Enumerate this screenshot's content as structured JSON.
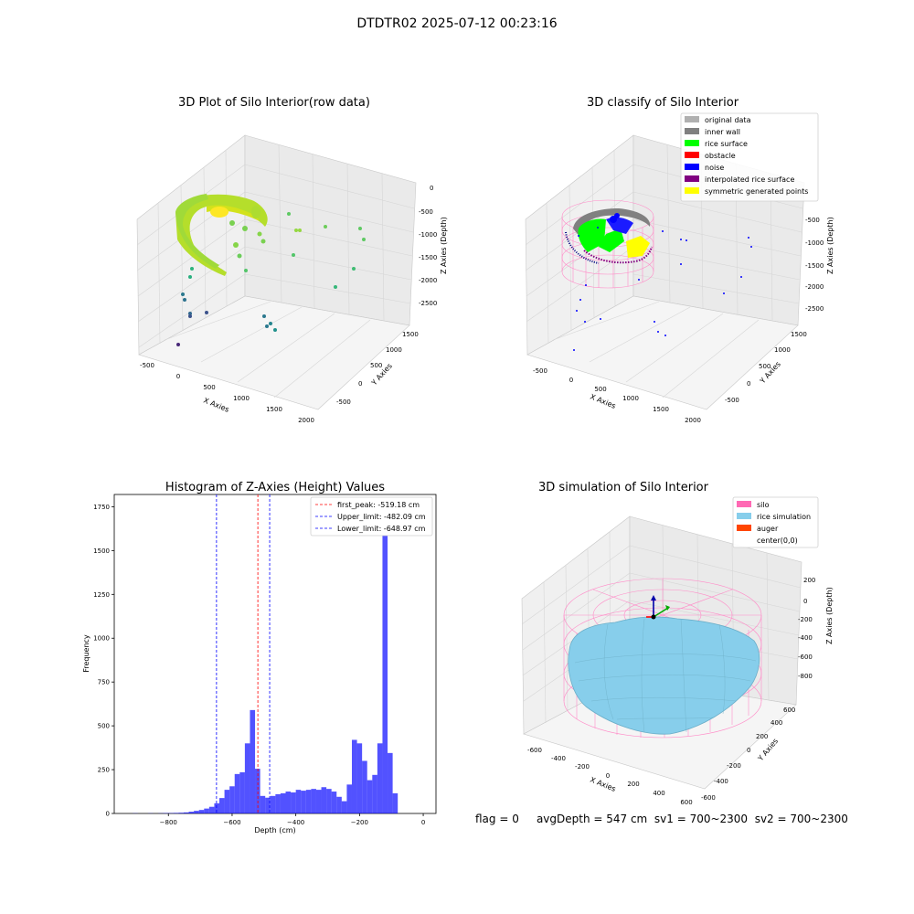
{
  "figure_title": "DTDTR02 2025-07-12 00:23:16",
  "status": {
    "flag": "flag = 0",
    "avg_depth": "avgDepth = 547 cm",
    "sv1": "sv1 = 700~2300",
    "sv2": "sv2 = 700~2300"
  },
  "chart_data": [
    {
      "type": "scatter",
      "title": "3D Plot of Silo Interior(row data)",
      "xlabel": "X Axies",
      "ylabel": "Y Axies",
      "zlabel": "Z Axies (Depth)",
      "x_ticks": [
        "-500",
        "0",
        "500",
        "1000",
        "1500",
        "2000"
      ],
      "y_ticks": [
        "-500",
        "0",
        "500",
        "1000",
        "1500"
      ],
      "z_ticks": [
        "0",
        "-500",
        "-1000",
        "-1500",
        "-2000",
        "-2500"
      ],
      "colormap": "viridis",
      "description_colors": {
        "surface": "#b5de2b",
        "high": "#fde725",
        "low": "#440154"
      }
    },
    {
      "type": "scatter",
      "title": "3D classify of Silo Interior",
      "xlabel": "X Axies",
      "ylabel": "Y Axies",
      "zlabel": "Z Axies (Depth)",
      "x_ticks": [
        "-500",
        "0",
        "500",
        "1000",
        "1500",
        "2000"
      ],
      "y_ticks": [
        "-500",
        "0",
        "500",
        "1000",
        "1500"
      ],
      "z_ticks": [
        "-500",
        "-1000",
        "-1500",
        "-2000",
        "-2500"
      ],
      "legend_position": "top-right",
      "legend": [
        {
          "label": "original data",
          "color": "#b0b0b0"
        },
        {
          "label": "inner wall",
          "color": "#808080"
        },
        {
          "label": "rice surface",
          "color": "#00ff00"
        },
        {
          "label": "obstacle",
          "color": "#ff0000"
        },
        {
          "label": "noise",
          "color": "#0000ff"
        },
        {
          "label": "interpolated rice surface",
          "color": "#800080"
        },
        {
          "label": "symmetric generated points",
          "color": "#ffff00"
        }
      ]
    },
    {
      "type": "bar",
      "title": "Histogram of Z-Axies (Height) Values",
      "xlabel": "Depth (cm)",
      "ylabel": "Frequency",
      "xlim": [
        -970,
        40
      ],
      "ylim": [
        0,
        1820
      ],
      "x_ticks": [
        -800,
        -600,
        -400,
        -200,
        0
      ],
      "y_ticks": [
        0,
        250,
        500,
        750,
        1000,
        1250,
        1500,
        1750
      ],
      "bar_color": "#0000ff",
      "bin_width": 16,
      "bins": [
        [
          -944,
          0
        ],
        [
          -928,
          0
        ],
        [
          -912,
          1
        ],
        [
          -896,
          0
        ],
        [
          -880,
          0
        ],
        [
          -864,
          1
        ],
        [
          -848,
          0
        ],
        [
          -832,
          1
        ],
        [
          -816,
          2
        ],
        [
          -800,
          2
        ],
        [
          -784,
          3
        ],
        [
          -768,
          4
        ],
        [
          -752,
          6
        ],
        [
          -736,
          10
        ],
        [
          -720,
          15
        ],
        [
          -704,
          20
        ],
        [
          -688,
          28
        ],
        [
          -672,
          38
        ],
        [
          -656,
          58
        ],
        [
          -640,
          88
        ],
        [
          -624,
          135
        ],
        [
          -608,
          155
        ],
        [
          -592,
          225
        ],
        [
          -576,
          235
        ],
        [
          -560,
          400
        ],
        [
          -544,
          590
        ],
        [
          -528,
          255
        ],
        [
          -512,
          100
        ],
        [
          -496,
          90
        ],
        [
          -480,
          100
        ],
        [
          -464,
          110
        ],
        [
          -448,
          115
        ],
        [
          -432,
          125
        ],
        [
          -416,
          120
        ],
        [
          -400,
          135
        ],
        [
          -384,
          130
        ],
        [
          -368,
          135
        ],
        [
          -352,
          140
        ],
        [
          -336,
          135
        ],
        [
          -320,
          150
        ],
        [
          -304,
          140
        ],
        [
          -288,
          125
        ],
        [
          -272,
          95
        ],
        [
          -256,
          70
        ],
        [
          -240,
          165
        ],
        [
          -224,
          420
        ],
        [
          -208,
          400
        ],
        [
          -192,
          300
        ],
        [
          -176,
          190
        ],
        [
          -160,
          220
        ],
        [
          -144,
          400
        ],
        [
          -128,
          1720
        ],
        [
          -112,
          345
        ],
        [
          -96,
          115
        ]
      ],
      "reference_lines": [
        {
          "label": "first_peak: -519.18 cm",
          "value": -519.18,
          "color": "#ff0000"
        },
        {
          "label": "Upper_limit: -482.09 cm",
          "value": -482.09,
          "color": "#0000ff"
        },
        {
          "label": "Lower_limit: -648.97 cm",
          "value": -648.97,
          "color": "#0000ff"
        }
      ],
      "legend_position": "top-right"
    },
    {
      "type": "surface",
      "title": "3D simulation of Silo Interior",
      "xlabel": "X Axies",
      "ylabel": "Y Axies",
      "zlabel": "Z Axies (Depth)",
      "x_ticks": [
        "-600",
        "-400",
        "-200",
        "0",
        "200",
        "400",
        "600"
      ],
      "y_ticks": [
        "-600",
        "-400",
        "-200",
        "0",
        "200",
        "400",
        "600"
      ],
      "z_ticks": [
        "200",
        "0",
        "-200",
        "-400",
        "-600",
        "-800"
      ],
      "legend_position": "top-right",
      "legend": [
        {
          "label": "silo",
          "color": "#ff69b4"
        },
        {
          "label": "rice simulation",
          "color": "#87ceeb"
        },
        {
          "label": "auger",
          "color": "#ff4500"
        },
        {
          "label": "center(0,0)",
          "color": "#ffffff"
        }
      ]
    }
  ]
}
